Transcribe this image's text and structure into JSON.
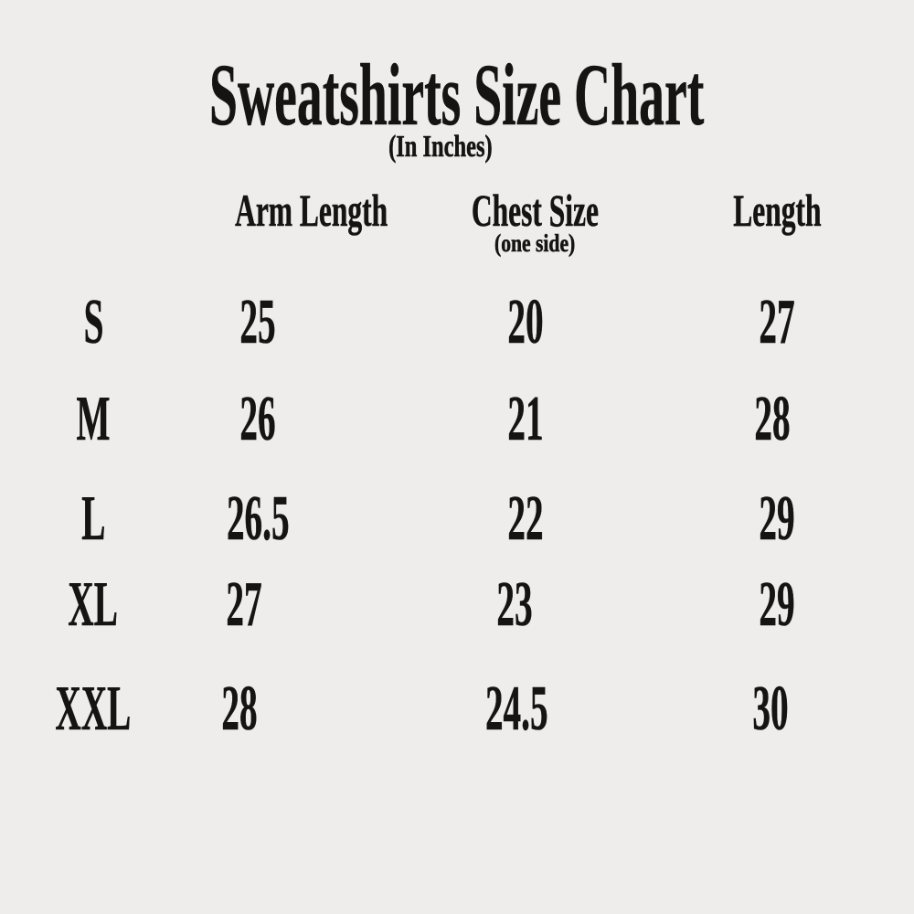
{
  "colors": {
    "background": "#eeedeb",
    "text": "#161412"
  },
  "chart_data": {
    "type": "table",
    "title": "Sweatshirts Size Chart",
    "subtitle": "(In Inches)",
    "columns": [
      {
        "key": "size",
        "label": ""
      },
      {
        "key": "arm_length",
        "label": "Arm Length",
        "sublabel": ""
      },
      {
        "key": "chest_size",
        "label": "Chest Size",
        "sublabel": "(one side)"
      },
      {
        "key": "length",
        "label": "Length",
        "sublabel": ""
      }
    ],
    "rows": [
      {
        "size": "S",
        "arm_length": "25",
        "chest_size": "20",
        "length": "27"
      },
      {
        "size": "M",
        "arm_length": "26",
        "chest_size": "21",
        "length": "28"
      },
      {
        "size": "L",
        "arm_length": "26.5",
        "chest_size": "22",
        "length": "29"
      },
      {
        "size": "XL",
        "arm_length": "27",
        "chest_size": "23",
        "length": "29"
      },
      {
        "size": "XXL",
        "arm_length": "28",
        "chest_size": "24.5",
        "length": "30"
      }
    ]
  }
}
